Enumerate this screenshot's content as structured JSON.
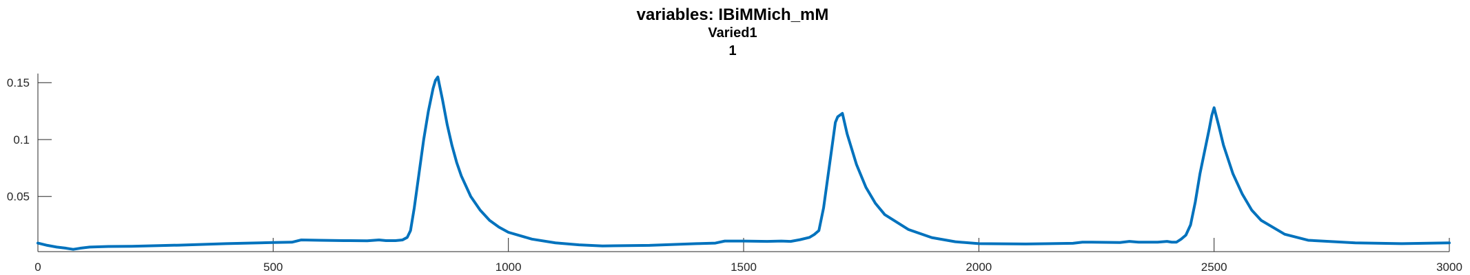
{
  "chart_data": {
    "type": "line",
    "title_lines": [
      "variables: IBiMMich_mM",
      "Varied1",
      "1"
    ],
    "xlabel": "",
    "ylabel": "",
    "xlim": [
      0,
      3000
    ],
    "ylim": [
      0.0015,
      0.158
    ],
    "xticks": [
      0,
      500,
      1000,
      1500,
      2000,
      2500,
      3000
    ],
    "xtick_labels": [
      "0",
      "500",
      "1000",
      "1500",
      "2000",
      "2500",
      "3000"
    ],
    "yticks": [
      0.05,
      0.1,
      0.15
    ],
    "ytick_labels": [
      "0.05",
      "0.1",
      "0.15"
    ],
    "grid": false,
    "legend": "none",
    "series": [
      {
        "color": "#0072BD",
        "x": [
          0,
          20,
          40,
          60,
          75,
          90,
          110,
          150,
          200,
          300,
          400,
          500,
          540,
          560,
          600,
          650,
          700,
          725,
          740,
          760,
          775,
          785,
          792,
          800,
          810,
          820,
          830,
          840,
          845,
          850,
          860,
          870,
          880,
          890,
          900,
          920,
          940,
          960,
          980,
          1000,
          1050,
          1100,
          1150,
          1200,
          1300,
          1400,
          1440,
          1460,
          1500,
          1550,
          1580,
          1600,
          1620,
          1640,
          1650,
          1660,
          1670,
          1680,
          1690,
          1695,
          1700,
          1710,
          1720,
          1740,
          1760,
          1780,
          1800,
          1850,
          1900,
          1950,
          2000,
          2100,
          2200,
          2220,
          2240,
          2300,
          2320,
          2340,
          2380,
          2400,
          2410,
          2420,
          2430,
          2440,
          2450,
          2460,
          2470,
          2480,
          2490,
          2495,
          2500,
          2510,
          2520,
          2540,
          2560,
          2580,
          2600,
          2650,
          2700,
          2800,
          2900,
          3000
        ],
        "y": [
          0.009,
          0.007,
          0.0055,
          0.0045,
          0.0035,
          0.0045,
          0.0055,
          0.006,
          0.0062,
          0.0072,
          0.0085,
          0.0095,
          0.0098,
          0.0118,
          0.0115,
          0.0112,
          0.011,
          0.0118,
          0.0112,
          0.0112,
          0.0118,
          0.014,
          0.02,
          0.04,
          0.07,
          0.1,
          0.125,
          0.145,
          0.152,
          0.155,
          0.135,
          0.113,
          0.095,
          0.08,
          0.068,
          0.05,
          0.038,
          0.029,
          0.023,
          0.0185,
          0.0125,
          0.0092,
          0.0075,
          0.0065,
          0.007,
          0.0085,
          0.009,
          0.0108,
          0.0108,
          0.0105,
          0.0108,
          0.0105,
          0.012,
          0.014,
          0.0165,
          0.02,
          0.04,
          0.07,
          0.1,
          0.115,
          0.12,
          0.123,
          0.105,
          0.078,
          0.058,
          0.044,
          0.034,
          0.021,
          0.0138,
          0.0102,
          0.0085,
          0.0082,
          0.0088,
          0.0098,
          0.0098,
          0.0095,
          0.0105,
          0.0098,
          0.0098,
          0.0105,
          0.0098,
          0.0098,
          0.0125,
          0.016,
          0.025,
          0.045,
          0.07,
          0.09,
          0.11,
          0.121,
          0.128,
          0.112,
          0.095,
          0.07,
          0.052,
          0.038,
          0.029,
          0.0168,
          0.0115,
          0.0092,
          0.0085,
          0.0092
        ]
      }
    ]
  }
}
